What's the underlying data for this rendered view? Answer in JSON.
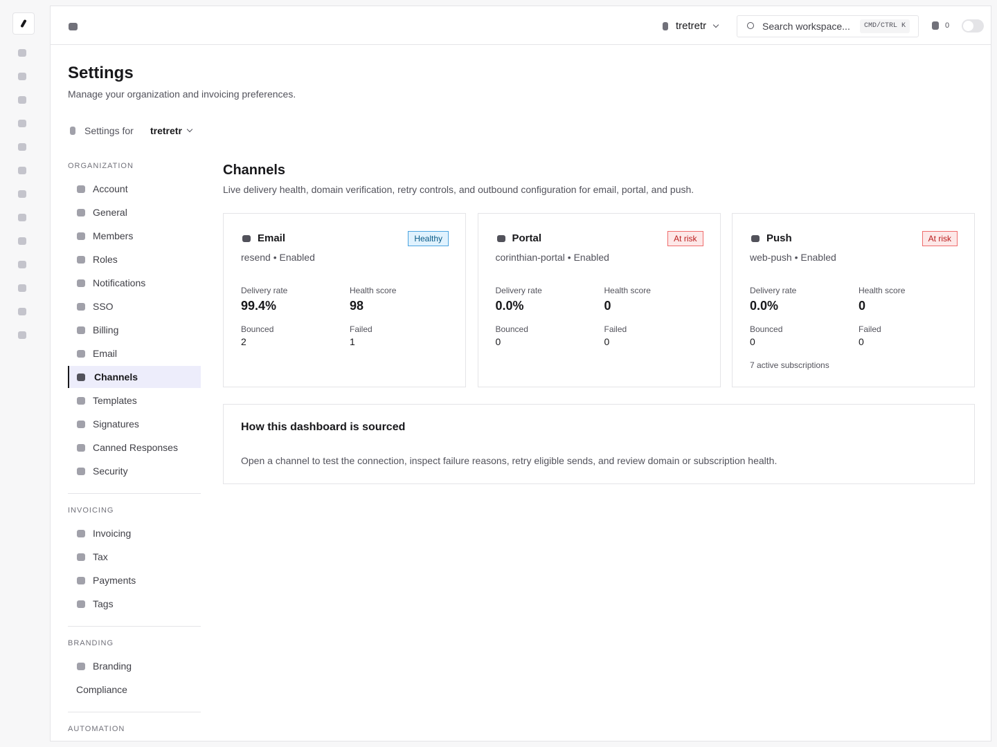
{
  "topbar": {
    "workspace": "tretretr",
    "search_placeholder": "Search workspace...",
    "shortcut": "CMD/CTRL K",
    "notification_count": "0"
  },
  "header": {
    "title": "Settings",
    "subtitle": "Manage your organization and invoicing preferences."
  },
  "scope": {
    "label": "Settings for",
    "org": "tretretr"
  },
  "nav": {
    "sections": [
      {
        "title": "ORGANIZATION",
        "items": [
          {
            "label": "Account"
          },
          {
            "label": "General"
          },
          {
            "label": "Members"
          },
          {
            "label": "Roles"
          },
          {
            "label": "Notifications"
          },
          {
            "label": "SSO"
          },
          {
            "label": "Billing"
          },
          {
            "label": "Email"
          },
          {
            "label": "Channels",
            "active": true
          },
          {
            "label": "Templates"
          },
          {
            "label": "Signatures"
          },
          {
            "label": "Canned Responses"
          },
          {
            "label": "Security"
          }
        ]
      },
      {
        "title": "INVOICING",
        "items": [
          {
            "label": "Invoicing"
          },
          {
            "label": "Tax"
          },
          {
            "label": "Payments"
          },
          {
            "label": "Tags"
          }
        ]
      },
      {
        "title": "BRANDING",
        "items": [
          {
            "label": "Branding"
          },
          {
            "label": "Compliance",
            "icon": false
          }
        ]
      },
      {
        "title": "AUTOMATION",
        "items": []
      }
    ]
  },
  "channels": {
    "title": "Channels",
    "description": "Live delivery health, domain verification, retry controls, and outbound configuration for email, portal, and push.",
    "cards": [
      {
        "name": "Email",
        "badge": "Healthy",
        "status": "healthy",
        "subtitle": "resend • Enabled",
        "stats": [
          {
            "label": "Delivery rate",
            "value": "99.4%"
          },
          {
            "label": "Health score",
            "value": "98"
          },
          {
            "label": "Bounced",
            "value": "2"
          },
          {
            "label": "Failed",
            "value": "1"
          }
        ]
      },
      {
        "name": "Portal",
        "badge": "At risk",
        "status": "risk",
        "subtitle": "corinthian-portal • Enabled",
        "stats": [
          {
            "label": "Delivery rate",
            "value": "0.0%"
          },
          {
            "label": "Health score",
            "value": "0"
          },
          {
            "label": "Bounced",
            "value": "0"
          },
          {
            "label": "Failed",
            "value": "0"
          }
        ]
      },
      {
        "name": "Push",
        "badge": "At risk",
        "status": "risk",
        "subtitle": "web-push • Enabled",
        "stats": [
          {
            "label": "Delivery rate",
            "value": "0.0%"
          },
          {
            "label": "Health score",
            "value": "0"
          },
          {
            "label": "Bounced",
            "value": "0"
          },
          {
            "label": "Failed",
            "value": "0"
          }
        ],
        "note": "7 active subscriptions"
      }
    ]
  },
  "info": {
    "title": "How this dashboard is sourced",
    "text": "Open a channel to test the connection, inspect failure reasons, retry eligible sends, and review domain or subscription health."
  }
}
